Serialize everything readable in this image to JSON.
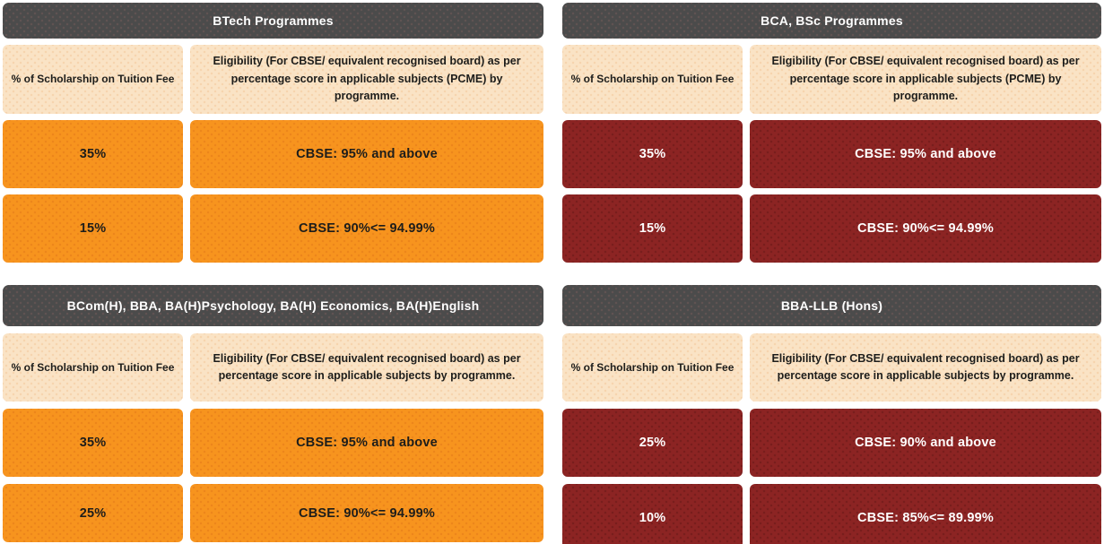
{
  "colors": {
    "title_bar_bg": "#4B4B4B",
    "title_bar_text": "#FFFFFF",
    "subheader_bg": "#FAE3C5",
    "dark_text": "#1D1D1B",
    "orange_accent": "#F7941E",
    "maroon_accent": "#8C2423",
    "light_text": "#FFFFFF"
  },
  "tables": [
    {
      "title": "BTech Programmes",
      "theme": "orange",
      "columns": [
        "% of Scholarship on Tuition Fee",
        "Eligibility (For CBSE/ equivalent recognised board) as per percentage score in applicable subjects (PCME) by programme."
      ],
      "rows": [
        [
          "35%",
          "CBSE: 95% and above"
        ],
        [
          "15%",
          "CBSE: 90%<= 94.99%"
        ]
      ]
    },
    {
      "title": "BCA, BSc Programmes",
      "theme": "maroon",
      "columns": [
        "% of Scholarship on Tuition Fee",
        "Eligibility (For CBSE/ equivalent recognised board) as per percentage score in applicable subjects (PCME) by programme."
      ],
      "rows": [
        [
          "35%",
          "CBSE: 95% and above"
        ],
        [
          "15%",
          "CBSE: 90%<= 94.99%"
        ]
      ]
    },
    {
      "title": "BCom(H), BBA, BA(H)Psychology, BA(H) Economics, BA(H)English",
      "theme": "orange",
      "columns": [
        "% of Scholarship on Tuition Fee",
        "Eligibility (For CBSE/ equivalent recognised board) as per percentage score in applicable subjects by programme."
      ],
      "rows": [
        [
          "35%",
          "CBSE: 95% and above"
        ],
        [
          "25%",
          "CBSE: 90%<= 94.99%"
        ]
      ]
    },
    {
      "title": "BBA-LLB (Hons)",
      "theme": "maroon",
      "columns": [
        "% of Scholarship on Tuition Fee",
        "Eligibility (For CBSE/ equivalent recognised board) as per percentage score in applicable subjects by programme."
      ],
      "rows": [
        [
          "25%",
          "CBSE: 90% and above"
        ],
        [
          "10%",
          "CBSE: 85%<= 89.99%"
        ]
      ]
    }
  ]
}
